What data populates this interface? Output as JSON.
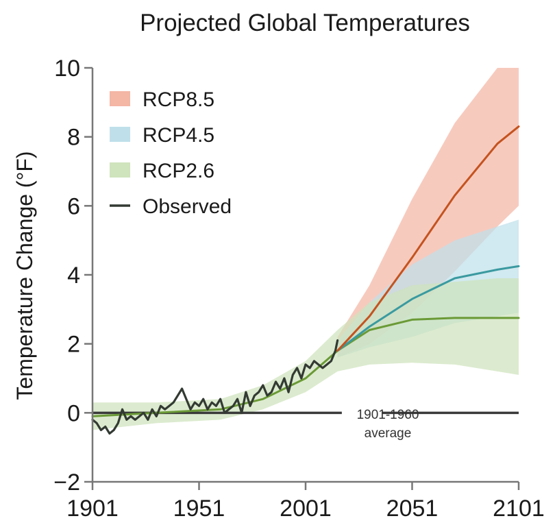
{
  "chart_data": {
    "type": "area",
    "title": "Projected Global Temperatures",
    "xlabel": "",
    "ylabel": "Temperature Change (°F)",
    "xlim": [
      1901,
      2101
    ],
    "ylim": [
      -2,
      10
    ],
    "x_ticks": [
      1901,
      1951,
      2001,
      2051,
      2101
    ],
    "y_ticks": [
      -2,
      0,
      2,
      4,
      6,
      8,
      10
    ],
    "grid": false,
    "legend_position": "top-left",
    "baseline": {
      "value": 0,
      "label_line1": "1901-1960",
      "label_line2": "average"
    },
    "series": [
      {
        "name": "RCP8.5",
        "band_color": "#f4b6a5",
        "line_color": "#c4531f",
        "x": [
          2016,
          2031,
          2051,
          2071,
          2091,
          2101
        ],
        "mean": [
          1.8,
          2.8,
          4.5,
          6.3,
          7.8,
          8.3
        ],
        "lower": [
          1.6,
          2.0,
          2.9,
          4.1,
          5.4,
          6.0
        ],
        "upper": [
          2.2,
          3.7,
          6.2,
          8.4,
          10.0,
          10.0
        ]
      },
      {
        "name": "RCP4.5",
        "band_color": "#bfe0ea",
        "line_color": "#3a9aa0",
        "x": [
          2016,
          2031,
          2051,
          2071,
          2091,
          2101
        ],
        "mean": [
          1.8,
          2.5,
          3.3,
          3.9,
          4.15,
          4.25
        ],
        "lower": [
          1.6,
          1.9,
          2.2,
          2.6,
          2.8,
          2.9
        ],
        "upper": [
          2.1,
          3.2,
          4.3,
          5.0,
          5.4,
          5.6
        ]
      },
      {
        "name": "RCP2.6",
        "band_color": "#cfe3bc",
        "line_color": "#6a9a36",
        "x": [
          1901,
          1931,
          1961,
          1981,
          2001,
          2016,
          2031,
          2051,
          2071,
          2091,
          2101
        ],
        "mean": [
          -0.1,
          0.0,
          0.1,
          0.4,
          1.0,
          1.8,
          2.4,
          2.7,
          2.75,
          2.75,
          2.75
        ],
        "lower": [
          -0.5,
          -0.3,
          -0.2,
          0.1,
          0.6,
          1.2,
          1.4,
          1.45,
          1.4,
          1.2,
          1.1
        ],
        "upper": [
          0.3,
          0.3,
          0.4,
          0.8,
          1.5,
          2.4,
          3.2,
          3.7,
          3.8,
          3.9,
          3.9
        ]
      },
      {
        "name": "Observed",
        "line_color": "#333a33",
        "x": [
          1901,
          1903,
          1905,
          1907,
          1909,
          1911,
          1913,
          1915,
          1917,
          1919,
          1921,
          1923,
          1925,
          1927,
          1929,
          1931,
          1933,
          1935,
          1937,
          1939,
          1941,
          1943,
          1945,
          1947,
          1949,
          1951,
          1953,
          1955,
          1957,
          1959,
          1961,
          1963,
          1965,
          1967,
          1969,
          1971,
          1973,
          1975,
          1977,
          1979,
          1981,
          1983,
          1985,
          1987,
          1989,
          1991,
          1993,
          1995,
          1997,
          1999,
          2001,
          2003,
          2005,
          2007,
          2009,
          2011,
          2013,
          2015,
          2016
        ],
        "values": [
          -0.2,
          -0.3,
          -0.5,
          -0.4,
          -0.6,
          -0.5,
          -0.3,
          0.1,
          -0.2,
          -0.1,
          -0.2,
          -0.1,
          0.0,
          -0.2,
          0.1,
          -0.1,
          0.2,
          0.1,
          0.2,
          0.3,
          0.5,
          0.7,
          0.4,
          0.1,
          0.3,
          0.2,
          0.4,
          0.1,
          0.3,
          0.2,
          0.4,
          0.0,
          0.1,
          0.2,
          0.4,
          0.0,
          0.6,
          0.2,
          0.5,
          0.6,
          0.8,
          0.5,
          0.6,
          0.9,
          0.7,
          1.0,
          0.6,
          1.1,
          1.3,
          1.0,
          1.4,
          1.3,
          1.5,
          1.4,
          1.3,
          1.4,
          1.5,
          1.8,
          2.1
        ]
      }
    ]
  }
}
